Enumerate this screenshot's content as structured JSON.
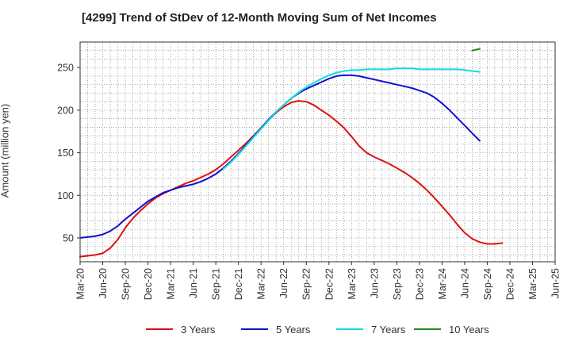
{
  "title": "[4299]  Trend of StDev of 12-Month Moving Sum of Net Incomes",
  "chart_data": {
    "type": "line",
    "title": "[4299]  Trend of StDev of 12-Month Moving Sum of Net Incomes",
    "xlabel": "",
    "ylabel": "Amount (million yen)",
    "ylim": [
      22,
      280
    ],
    "xlim": [
      "2020-03",
      "2025-06"
    ],
    "yticks": [
      50,
      100,
      150,
      200,
      250
    ],
    "xticks": [
      "Mar-20",
      "Jun-20",
      "Sep-20",
      "Dec-20",
      "Mar-21",
      "Jun-21",
      "Sep-21",
      "Dec-21",
      "Mar-22",
      "Jun-22",
      "Sep-22",
      "Dec-22",
      "Mar-23",
      "Jun-23",
      "Sep-23",
      "Dec-23",
      "Mar-24",
      "Jun-24",
      "Sep-24",
      "Dec-24",
      "Mar-25",
      "Jun-25"
    ],
    "grid": true,
    "legend_position": "bottom",
    "series": [
      {
        "name": "3 Years",
        "color": "#dd1111",
        "points": [
          [
            "2020-03",
            28
          ],
          [
            "2020-04",
            29
          ],
          [
            "2020-05",
            30
          ],
          [
            "2020-06",
            32
          ],
          [
            "2020-07",
            38
          ],
          [
            "2020-08",
            48
          ],
          [
            "2020-09",
            62
          ],
          [
            "2020-10",
            73
          ],
          [
            "2020-11",
            82
          ],
          [
            "2020-12",
            90
          ],
          [
            "2021-01",
            97
          ],
          [
            "2021-02",
            102
          ],
          [
            "2021-03",
            106
          ],
          [
            "2021-04",
            110
          ],
          [
            "2021-05",
            114
          ],
          [
            "2021-06",
            117
          ],
          [
            "2021-07",
            121
          ],
          [
            "2021-08",
            125
          ],
          [
            "2021-09",
            130
          ],
          [
            "2021-10",
            137
          ],
          [
            "2021-11",
            145
          ],
          [
            "2021-12",
            153
          ],
          [
            "2022-01",
            161
          ],
          [
            "2022-02",
            170
          ],
          [
            "2022-03",
            179
          ],
          [
            "2022-04",
            188
          ],
          [
            "2022-05",
            197
          ],
          [
            "2022-06",
            204
          ],
          [
            "2022-07",
            209
          ],
          [
            "2022-08",
            211
          ],
          [
            "2022-09",
            210
          ],
          [
            "2022-10",
            206
          ],
          [
            "2022-11",
            200
          ],
          [
            "2022-12",
            194
          ],
          [
            "2023-01",
            187
          ],
          [
            "2023-02",
            179
          ],
          [
            "2023-03",
            169
          ],
          [
            "2023-04",
            158
          ],
          [
            "2023-05",
            150
          ],
          [
            "2023-06",
            145
          ],
          [
            "2023-07",
            141
          ],
          [
            "2023-08",
            137
          ],
          [
            "2023-09",
            132
          ],
          [
            "2023-10",
            127
          ],
          [
            "2023-11",
            121
          ],
          [
            "2023-12",
            114
          ],
          [
            "2024-01",
            106
          ],
          [
            "2024-02",
            97
          ],
          [
            "2024-03",
            87
          ],
          [
            "2024-04",
            77
          ],
          [
            "2024-05",
            66
          ],
          [
            "2024-06",
            56
          ],
          [
            "2024-07",
            49
          ],
          [
            "2024-08",
            45
          ],
          [
            "2024-09",
            43
          ],
          [
            "2024-10",
            43
          ],
          [
            "2024-11",
            44
          ]
        ]
      },
      {
        "name": "5 Years",
        "color": "#1111cc",
        "points": [
          [
            "2020-03",
            50
          ],
          [
            "2020-04",
            51
          ],
          [
            "2020-05",
            52
          ],
          [
            "2020-06",
            54
          ],
          [
            "2020-07",
            58
          ],
          [
            "2020-08",
            64
          ],
          [
            "2020-09",
            72
          ],
          [
            "2020-10",
            79
          ],
          [
            "2020-11",
            86
          ],
          [
            "2020-12",
            93
          ],
          [
            "2021-01",
            98
          ],
          [
            "2021-02",
            103
          ],
          [
            "2021-03",
            106
          ],
          [
            "2021-04",
            109
          ],
          [
            "2021-05",
            111
          ],
          [
            "2021-06",
            113
          ],
          [
            "2021-07",
            116
          ],
          [
            "2021-08",
            120
          ],
          [
            "2021-09",
            125
          ],
          [
            "2021-10",
            132
          ],
          [
            "2021-11",
            140
          ],
          [
            "2021-12",
            149
          ],
          [
            "2022-01",
            159
          ],
          [
            "2022-02",
            169
          ],
          [
            "2022-03",
            179
          ],
          [
            "2022-04",
            189
          ],
          [
            "2022-05",
            198
          ],
          [
            "2022-06",
            206
          ],
          [
            "2022-07",
            214
          ],
          [
            "2022-08",
            220
          ],
          [
            "2022-09",
            225
          ],
          [
            "2022-10",
            229
          ],
          [
            "2022-11",
            233
          ],
          [
            "2022-12",
            237
          ],
          [
            "2023-01",
            240
          ],
          [
            "2023-02",
            241
          ],
          [
            "2023-03",
            241
          ],
          [
            "2023-04",
            240
          ],
          [
            "2023-05",
            238
          ],
          [
            "2023-06",
            236
          ],
          [
            "2023-07",
            234
          ],
          [
            "2023-08",
            232
          ],
          [
            "2023-09",
            230
          ],
          [
            "2023-10",
            228
          ],
          [
            "2023-11",
            226
          ],
          [
            "2023-12",
            223
          ],
          [
            "2024-01",
            220
          ],
          [
            "2024-02",
            215
          ],
          [
            "2024-03",
            208
          ],
          [
            "2024-04",
            200
          ],
          [
            "2024-05",
            191
          ],
          [
            "2024-06",
            182
          ],
          [
            "2024-07",
            173
          ],
          [
            "2024-08",
            164
          ]
        ]
      },
      {
        "name": "7 Years",
        "color": "#11dddd",
        "points": [
          [
            "2021-10",
            131
          ],
          [
            "2021-11",
            139
          ],
          [
            "2021-12",
            148
          ],
          [
            "2022-01",
            158
          ],
          [
            "2022-02",
            168
          ],
          [
            "2022-03",
            178
          ],
          [
            "2022-04",
            188
          ],
          [
            "2022-05",
            198
          ],
          [
            "2022-06",
            206
          ],
          [
            "2022-07",
            214
          ],
          [
            "2022-08",
            221
          ],
          [
            "2022-09",
            227
          ],
          [
            "2022-10",
            232
          ],
          [
            "2022-11",
            237
          ],
          [
            "2022-12",
            241
          ],
          [
            "2023-01",
            244
          ],
          [
            "2023-02",
            246
          ],
          [
            "2023-03",
            247
          ],
          [
            "2023-04",
            247
          ],
          [
            "2023-05",
            248
          ],
          [
            "2023-06",
            248
          ],
          [
            "2023-07",
            248
          ],
          [
            "2023-08",
            248
          ],
          [
            "2023-09",
            249
          ],
          [
            "2023-10",
            249
          ],
          [
            "2023-11",
            249
          ],
          [
            "2023-12",
            248
          ],
          [
            "2024-01",
            248
          ],
          [
            "2024-02",
            248
          ],
          [
            "2024-03",
            248
          ],
          [
            "2024-04",
            248
          ],
          [
            "2024-05",
            248
          ],
          [
            "2024-06",
            247
          ],
          [
            "2024-07",
            246
          ],
          [
            "2024-08",
            245
          ]
        ]
      },
      {
        "name": "10 Years",
        "color": "#228822",
        "points": [
          [
            "2024-07",
            270
          ],
          [
            "2024-08",
            272
          ]
        ]
      }
    ]
  }
}
